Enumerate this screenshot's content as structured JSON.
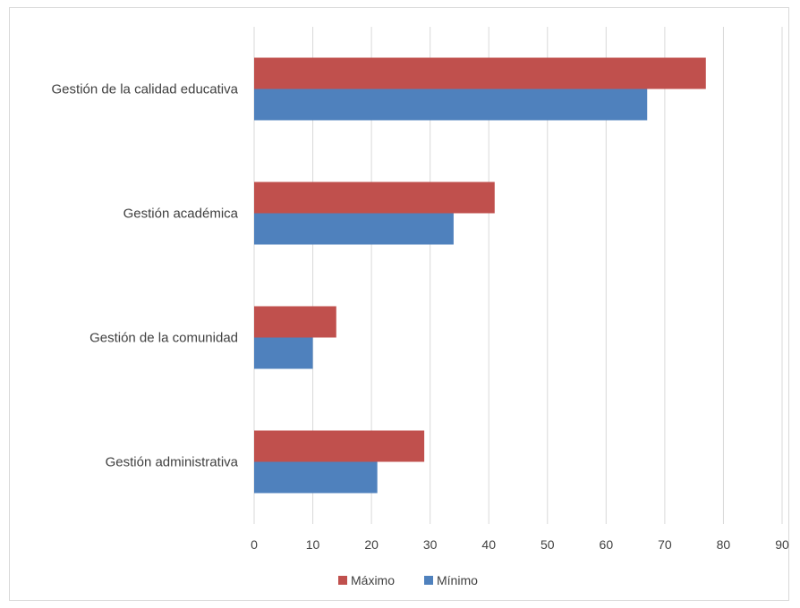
{
  "chart_data": {
    "type": "bar",
    "orientation": "horizontal",
    "categories": [
      "Gestión de la calidad educativa",
      "Gestión académica",
      "Gestión de la comunidad",
      "Gestión administrativa"
    ],
    "series": [
      {
        "name": "Máximo",
        "color": "#c0504d",
        "values": [
          77,
          41,
          14,
          29
        ]
      },
      {
        "name": "Mínimo",
        "color": "#4f81bd",
        "values": [
          67,
          34,
          10,
          21
        ]
      }
    ],
    "xlim": [
      0,
      90
    ],
    "xticks": [
      0,
      10,
      20,
      30,
      40,
      50,
      60,
      70,
      80,
      90
    ],
    "grid": true,
    "legend_position": "bottom",
    "title": "",
    "xlabel": "",
    "ylabel": ""
  }
}
